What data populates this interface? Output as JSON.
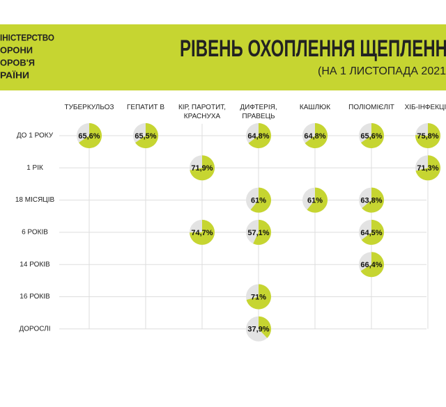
{
  "chart_data": {
    "type": "pie-matrix",
    "org_lines": [
      "ІНІСТЕРСТВО",
      "ОРОНИ",
      "ОРОВ'Я",
      "РАЇНИ"
    ],
    "title": "РІВЕНЬ ОХОПЛЕННЯ ЩЕПЛЕНН",
    "subtitle": "(НА 1 ЛИСТОПАДА 2021",
    "color": "#c6d531",
    "rows": [
      "ДО 1 РОКУ",
      "1 РІК",
      "18 МІСЯЦІВ",
      "6 РОКІВ",
      "14 РОКІВ",
      "16 РОКІВ",
      "ДОРОСЛІ"
    ],
    "series": [
      {
        "name": "ТУБЕРКУЛЬОЗ",
        "values": [
          65.6,
          null,
          null,
          null,
          null,
          null,
          null
        ],
        "value_labels": [
          "65,6%",
          null,
          null,
          null,
          null,
          null,
          null
        ]
      },
      {
        "name": "ГЕПАТИТ В",
        "values": [
          65.5,
          null,
          null,
          null,
          null,
          null,
          null
        ],
        "value_labels": [
          "65,5%",
          null,
          null,
          null,
          null,
          null,
          null
        ]
      },
      {
        "name": "КІР, ПАРОТИТ, КРАСНУХА",
        "values": [
          null,
          71.9,
          null,
          74.7,
          null,
          null,
          null
        ],
        "value_labels": [
          null,
          "71,9%",
          null,
          "74,7%",
          null,
          null,
          null
        ]
      },
      {
        "name": "ДИФТЕРІЯ, ПРАВЕЦЬ",
        "values": [
          64.8,
          null,
          61,
          57.1,
          null,
          71,
          37.9
        ],
        "value_labels": [
          "64,8%",
          null,
          "61%",
          "57,1%",
          null,
          "71%",
          "37,9%"
        ]
      },
      {
        "name": "КАШЛЮК",
        "values": [
          64.8,
          null,
          61,
          null,
          null,
          null,
          null
        ],
        "value_labels": [
          "64,8%",
          null,
          "61%",
          null,
          null,
          null,
          null
        ]
      },
      {
        "name": "ПОЛІОМІЄЛІТ",
        "values": [
          65.6,
          null,
          63.8,
          64.5,
          66.4,
          null,
          null
        ],
        "value_labels": [
          "65,6%",
          null,
          "63,8%",
          "64,5%",
          "66,4%",
          null,
          null
        ]
      },
      {
        "name": "ХІБ-ІНФЕКЦІЯ",
        "values": [
          75.8,
          71.3,
          null,
          null,
          null,
          null,
          null
        ],
        "value_labels": [
          "75,8%",
          "71,3%",
          null,
          null,
          null,
          null,
          null
        ]
      }
    ]
  }
}
